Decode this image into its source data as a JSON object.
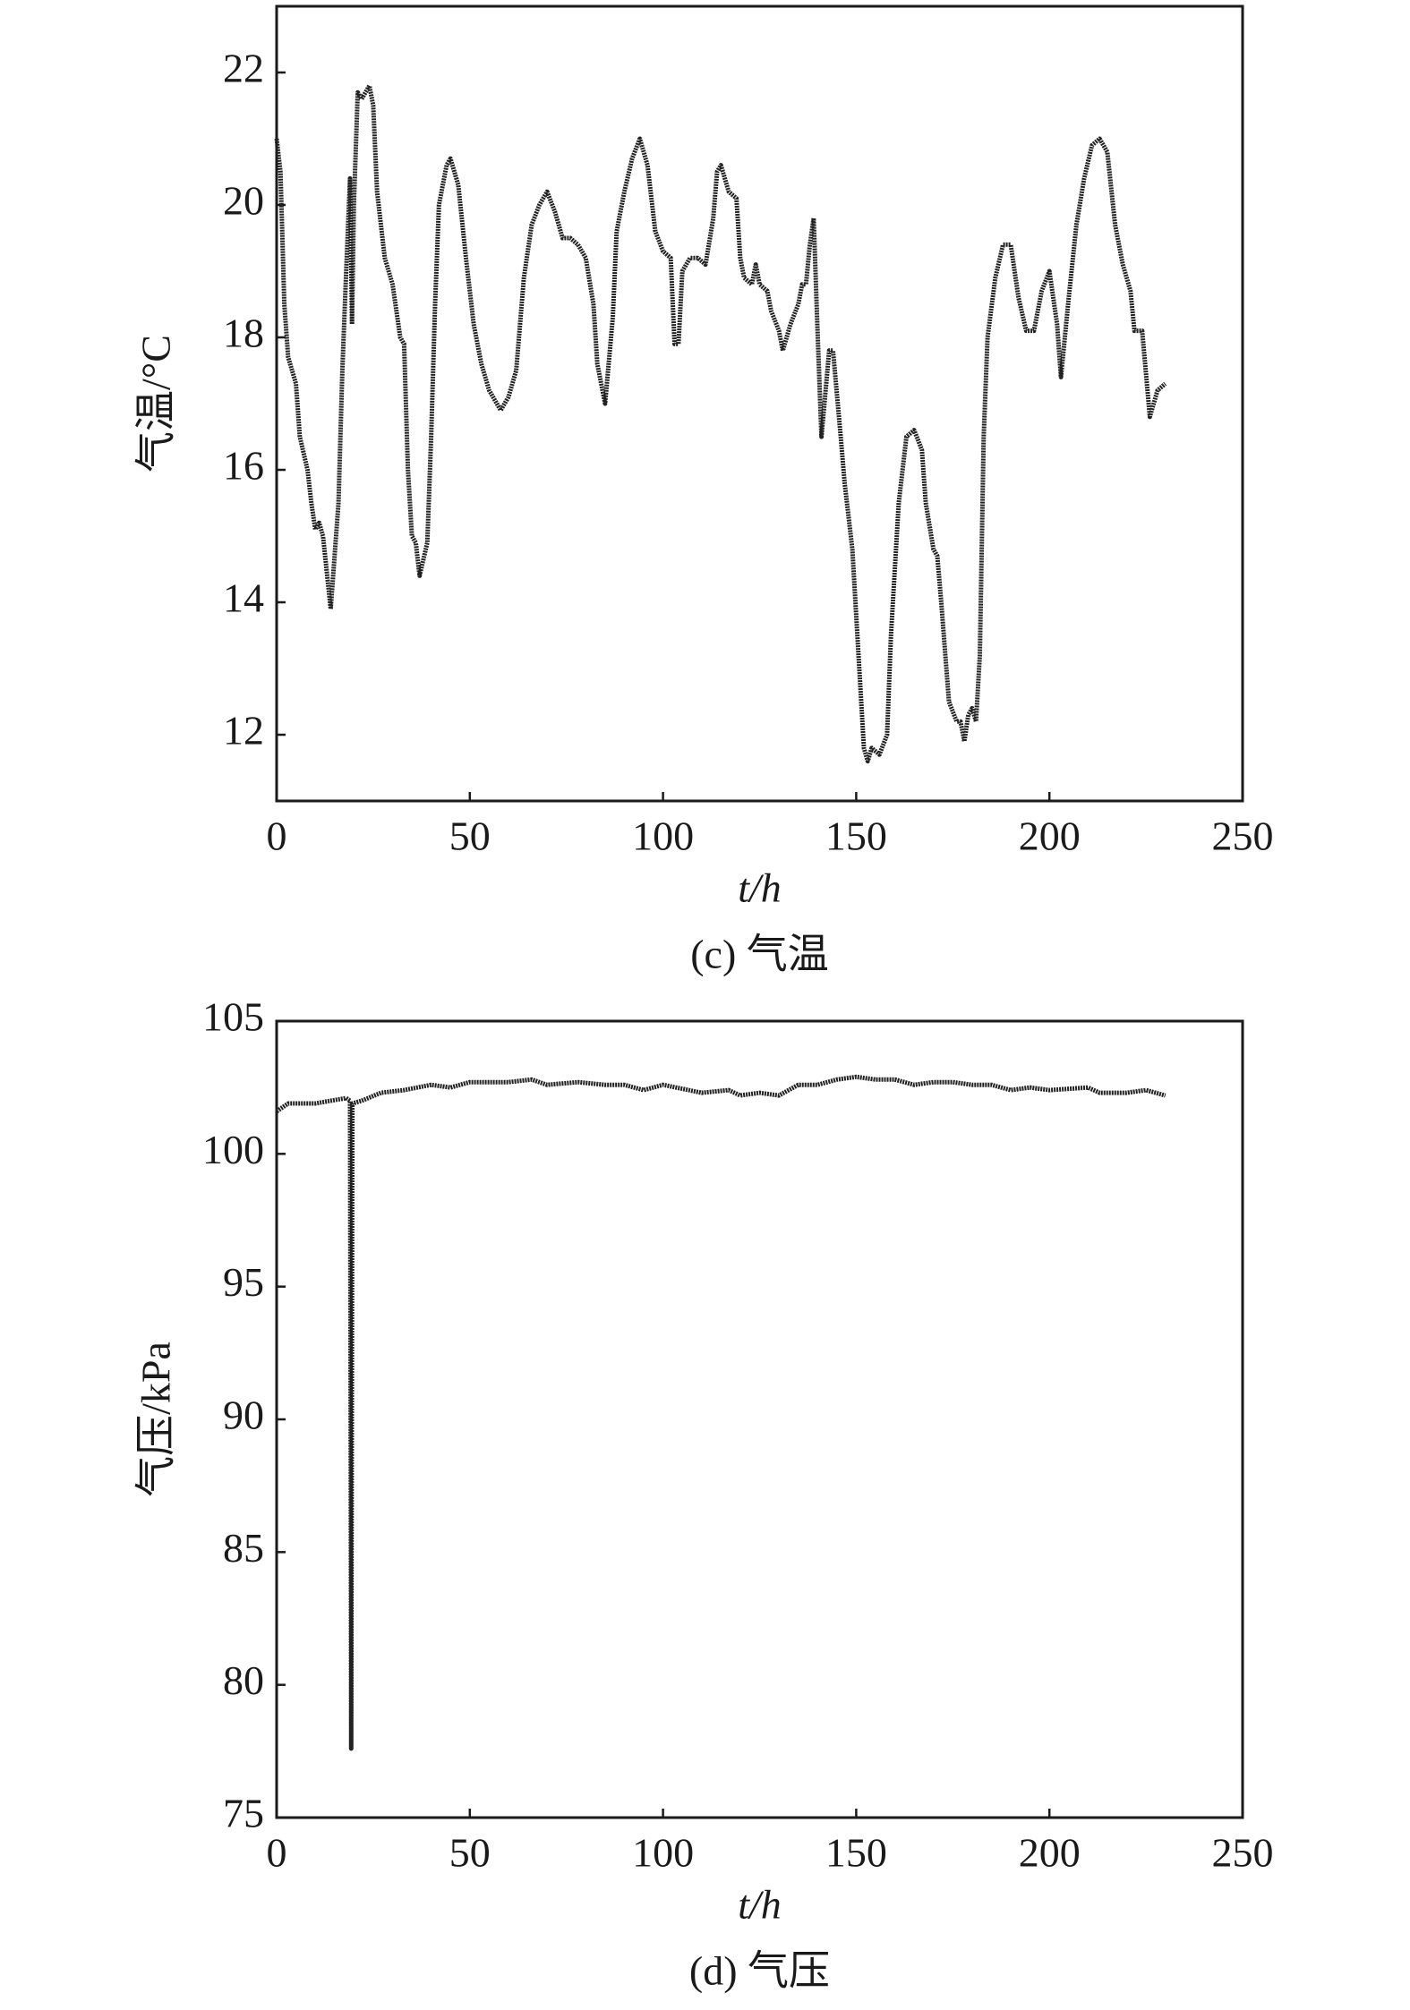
{
  "chart_data": [
    {
      "type": "line",
      "title": "(c) 气温",
      "x_label": "t/h",
      "y_label": "气温/°C",
      "color": "#222222",
      "xlim": [
        0,
        250
      ],
      "xticks": [
        0,
        50,
        100,
        150,
        200,
        250
      ],
      "ylim": [
        11,
        23
      ],
      "yticks": [
        12,
        14,
        16,
        18,
        20,
        22
      ],
      "x": [
        0,
        1,
        2,
        3,
        5,
        6,
        8,
        9,
        10,
        11,
        12,
        14,
        16,
        17,
        18,
        19,
        19.5,
        20,
        21,
        22,
        23,
        24,
        25,
        26,
        28,
        30,
        32,
        33,
        34,
        35,
        36,
        37,
        39,
        40,
        41,
        42,
        44,
        45,
        47,
        49,
        51,
        53,
        55,
        57,
        58,
        60,
        62,
        64,
        66,
        68,
        70,
        72,
        74,
        76,
        78,
        80,
        82,
        83,
        85,
        87,
        88,
        90,
        92,
        94,
        96,
        98,
        100,
        102,
        103,
        104,
        105,
        107,
        109,
        111,
        113,
        114,
        115,
        117,
        119,
        120,
        121,
        123,
        124,
        125,
        127,
        128,
        130,
        131,
        133,
        135,
        136,
        137,
        138,
        139,
        140,
        141,
        143,
        144,
        146,
        147,
        149,
        150,
        151,
        152,
        153,
        154,
        156,
        158,
        159,
        161,
        163,
        165,
        167,
        168,
        170,
        171,
        172,
        174,
        176,
        177,
        178,
        179,
        180,
        181,
        182,
        183,
        184,
        186,
        188,
        190,
        192,
        194,
        196,
        198,
        200,
        202,
        203,
        205,
        207,
        209,
        211,
        213,
        215,
        217,
        219,
        221,
        222,
        224,
        226,
        228,
        230
      ],
      "values": [
        21,
        20.5,
        18.5,
        17.7,
        17.3,
        16.5,
        16,
        15.5,
        15.1,
        15.2,
        15,
        13.9,
        15.5,
        17.5,
        19,
        20.4,
        18.2,
        20,
        21.7,
        21.6,
        21.7,
        21.8,
        21.5,
        20.2,
        19.2,
        18.8,
        18,
        17.9,
        16,
        15,
        14.9,
        14.4,
        14.9,
        16.5,
        18.5,
        20,
        20.6,
        20.7,
        20.3,
        19.2,
        18.2,
        17.6,
        17.2,
        17,
        16.9,
        17.1,
        17.5,
        18.9,
        19.7,
        20,
        20.2,
        19.9,
        19.5,
        19.5,
        19.4,
        19.2,
        18.5,
        17.6,
        17,
        18.3,
        19.6,
        20.2,
        20.7,
        21,
        20.6,
        19.6,
        19.3,
        19.2,
        17.9,
        17.9,
        19,
        19.2,
        19.2,
        19.1,
        19.8,
        20.5,
        20.6,
        20.2,
        20.1,
        19.2,
        18.9,
        18.8,
        19.1,
        18.8,
        18.7,
        18.4,
        18.1,
        17.8,
        18.2,
        18.5,
        18.8,
        18.8,
        19.4,
        19.8,
        18.1,
        16.5,
        17.8,
        17.8,
        16.5,
        15.8,
        14.8,
        13.8,
        12.8,
        11.8,
        11.6,
        11.8,
        11.7,
        12,
        13.5,
        15.5,
        16.5,
        16.6,
        16.3,
        15.5,
        14.8,
        14.7,
        14,
        12.5,
        12.2,
        12.2,
        11.9,
        12.3,
        12.4,
        12.2,
        13.2,
        16.5,
        18,
        18.9,
        19.4,
        19.4,
        18.6,
        18.1,
        18.1,
        18.7,
        19,
        18.2,
        17.4,
        18.6,
        19.7,
        20.4,
        20.9,
        21,
        20.8,
        19.7,
        19.1,
        18.7,
        18.1,
        18.1,
        16.8,
        17.2,
        17.3
      ]
    },
    {
      "type": "line",
      "title": "(d) 气压",
      "x_label": "t/h",
      "y_label": "气压/kPa",
      "color": "#222222",
      "xlim": [
        0,
        250
      ],
      "xticks": [
        0,
        50,
        100,
        150,
        200,
        250
      ],
      "ylim": [
        75,
        105
      ],
      "yticks": [
        75,
        80,
        85,
        90,
        95,
        100,
        105
      ],
      "x": [
        0,
        3,
        10,
        18,
        19,
        19.3,
        19.6,
        22,
        27,
        33,
        40,
        45,
        50,
        60,
        66,
        70,
        78,
        85,
        90,
        95,
        100,
        110,
        117,
        120,
        125,
        130,
        135,
        140,
        145,
        150,
        155,
        160,
        165,
        170,
        175,
        180,
        185,
        190,
        195,
        200,
        210,
        213,
        220,
        225,
        230
      ],
      "values": [
        101.6,
        101.9,
        101.9,
        102.1,
        102,
        77.6,
        101.9,
        102,
        102.3,
        102.4,
        102.6,
        102.5,
        102.7,
        102.7,
        102.8,
        102.6,
        102.7,
        102.6,
        102.6,
        102.4,
        102.6,
        102.3,
        102.4,
        102.2,
        102.3,
        102.2,
        102.6,
        102.6,
        102.8,
        102.9,
        102.8,
        102.8,
        102.6,
        102.7,
        102.7,
        102.6,
        102.6,
        102.4,
        102.5,
        102.4,
        102.5,
        102.3,
        102.3,
        102.4,
        102.2
      ]
    }
  ]
}
